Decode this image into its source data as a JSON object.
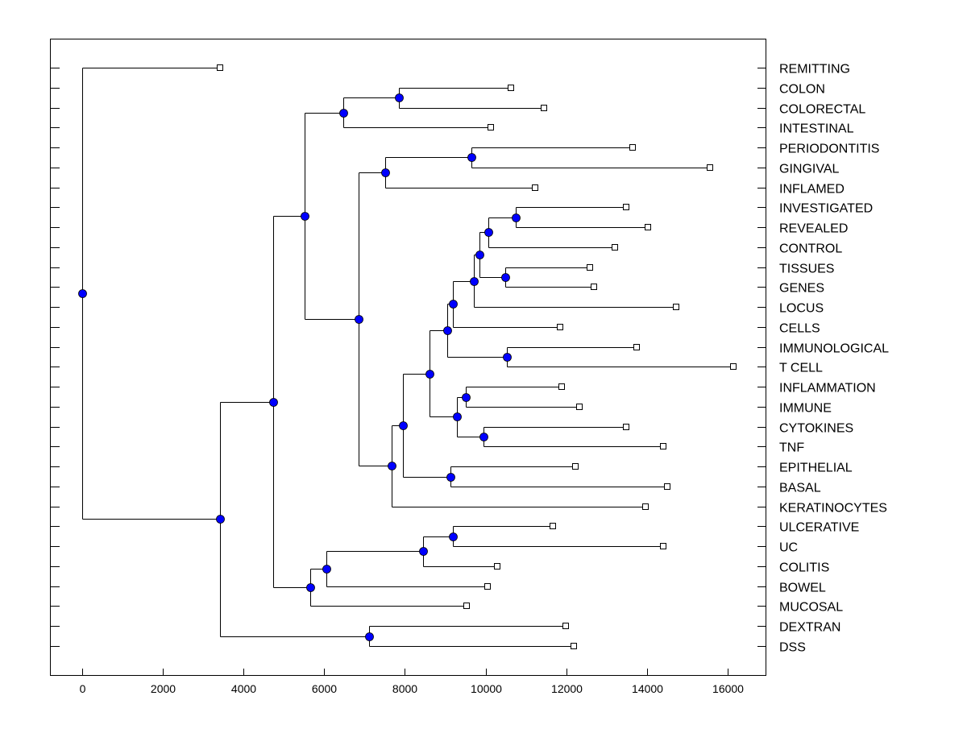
{
  "chart_data": {
    "type": "dendrogram",
    "title": "",
    "xlabel": "",
    "ylabel": "",
    "xlim": [
      -800,
      16940
    ],
    "xticks": [
      0,
      2000,
      4000,
      6000,
      8000,
      10000,
      12000,
      14000,
      16000
    ],
    "xtick_labels": [
      "0",
      "2000",
      "4000",
      "6000",
      "8000",
      "10000",
      "12000",
      "14000",
      "16000"
    ],
    "leaf_order": [
      "REMITTING",
      "COLON",
      "COLORECTAL",
      "INTESTINAL",
      "PERIODONTITIS",
      "GINGIVAL",
      "INFLAMED",
      "INVESTIGATED",
      "REVEALED",
      "CONTROL",
      "TISSUES",
      "GENES",
      "LOCUS",
      "CELLS",
      "IMMUNOLOGICAL",
      "T CELL",
      "INFLAMMATION",
      "IMMUNE",
      "CYTOKINES",
      "TNF",
      "EPITHELIAL",
      "BASAL",
      "KERATINOCYTES",
      "ULCERATIVE",
      "UC",
      "COLITIS",
      "BOWEL",
      "MUCOSAL",
      "DEXTRAN",
      "DSS"
    ],
    "node_color": "#0000ff",
    "tree": {
      "h": 0,
      "children": [
        {
          "label": "REMITTING",
          "h": 3416
        },
        {
          "h": 3416,
          "children": [
            {
              "h": 4734,
              "children": [
                {
                  "h": 5513,
                  "children": [
                    {
                      "h": 6472,
                      "children": [
                        {
                          "h": 7851,
                          "children": [
                            {
                              "label": "COLON",
                              "h": 10627
                            },
                            {
                              "label": "COLORECTAL",
                              "h": 11446
                            }
                          ]
                        },
                        {
                          "label": "INTESTINAL",
                          "h": 10128
                        }
                      ]
                    },
                    {
                      "h": 6852,
                      "children": [
                        {
                          "h": 7511,
                          "children": [
                            {
                              "h": 9648,
                              "children": [
                                {
                                  "label": "PERIODONTITIS",
                                  "h": 13644
                                },
                                {
                                  "label": "GINGIVAL",
                                  "h": 15562
                                }
                              ]
                            },
                            {
                              "label": "INFLAMED",
                              "h": 11227
                            }
                          ]
                        },
                        {
                          "h": 7671,
                          "children": [
                            {
                              "h": 7951,
                              "children": [
                                {
                                  "h": 8610,
                                  "children": [
                                    {
                                      "h": 9049,
                                      "children": [
                                        {
                                          "h": 9189,
                                          "children": [
                                            {
                                              "h": 9708,
                                              "children": [
                                                {
                                                  "h": 9848,
                                                  "children": [
                                                    {
                                                      "h": 10068,
                                                      "children": [
                                                        {
                                                          "h": 10747,
                                                          "children": [
                                                            {
                                                              "label": "INVESTIGATED",
                                                              "h": 13484
                                                            },
                                                            {
                                                              "label": "REVEALED",
                                                              "h": 14024
                                                            }
                                                          ]
                                                        },
                                                        {
                                                          "label": "CONTROL",
                                                          "h": 13204
                                                        }
                                                      ]
                                                    },
                                                    {
                                                      "h": 10488,
                                                      "children": [
                                                        {
                                                          "label": "TISSUES",
                                                          "h": 12585
                                                        },
                                                        {
                                                          "label": "GENES",
                                                          "h": 12685
                                                        }
                                                      ]
                                                    }
                                                  ]
                                                },
                                                {
                                                  "label": "LOCUS",
                                                  "h": 14722
                                                }
                                              ]
                                            },
                                            {
                                              "label": "CELLS",
                                              "h": 11846
                                            }
                                          ]
                                        },
                                        {
                                          "h": 10528,
                                          "children": [
                                            {
                                              "label": "IMMUNOLOGICAL",
                                              "h": 13744
                                            },
                                            {
                                              "label": "T CELL",
                                              "h": 16141
                                            }
                                          ]
                                        }
                                      ]
                                    },
                                    {
                                      "h": 9289,
                                      "children": [
                                        {
                                          "h": 9509,
                                          "children": [
                                            {
                                              "label": "INFLAMMATION",
                                              "h": 11886
                                            },
                                            {
                                              "label": "IMMUNE",
                                              "h": 12325
                                            }
                                          ]
                                        },
                                        {
                                          "h": 9948,
                                          "children": [
                                            {
                                              "label": "CYTOKINES",
                                              "h": 13484
                                            },
                                            {
                                              "label": "TNF",
                                              "h": 14403
                                            }
                                          ]
                                        }
                                      ]
                                    }
                                  ]
                                },
                                {
                                  "h": 9129,
                                  "children": [
                                    {
                                      "label": "EPITHELIAL",
                                      "h": 12225
                                    },
                                    {
                                      "label": "BASAL",
                                      "h": 14503
                                    }
                                  ]
                                }
                              ]
                            },
                            {
                              "label": "KERATINOCYTES",
                              "h": 13963
                            }
                          ]
                        }
                      ]
                    }
                  ]
                },
                {
                  "h": 5653,
                  "children": [
                    {
                      "h": 6052,
                      "children": [
                        {
                          "h": 8450,
                          "children": [
                            {
                              "h": 9189,
                              "children": [
                                {
                                  "label": "ULCERATIVE",
                                  "h": 11666
                                },
                                {
                                  "label": "UC",
                                  "h": 14403
                                }
                              ]
                            },
                            {
                              "label": "COLITIS",
                              "h": 10288
                            }
                          ]
                        },
                        {
                          "label": "BOWEL",
                          "h": 10048
                        }
                      ]
                    },
                    {
                      "label": "MUCOSAL",
                      "h": 9529
                    }
                  ]
                }
              ]
            },
            {
              "h": 7112,
              "children": [
                {
                  "label": "DEXTRAN",
                  "h": 11986
                },
                {
                  "label": "DSS",
                  "h": 12185
                }
              ]
            }
          ]
        }
      ]
    }
  }
}
